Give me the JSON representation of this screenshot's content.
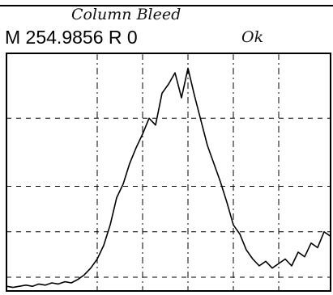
{
  "chart_data": {
    "type": "line",
    "title": "M 254.9856  R 0",
    "annotations": [
      "Column Bleed",
      "Ok"
    ],
    "x": [
      0,
      2,
      4,
      6,
      8,
      10,
      12,
      14,
      16,
      18,
      20,
      22,
      24,
      26,
      28,
      30,
      32,
      34,
      36,
      38,
      40,
      42,
      44,
      46,
      48,
      50,
      52,
      54,
      56,
      58,
      60,
      62,
      64,
      66,
      68,
      70,
      72,
      74,
      76,
      78,
      80,
      82,
      84,
      86,
      88,
      90,
      92,
      94,
      96,
      98,
      100
    ],
    "series": [
      {
        "color": "#000000",
        "values": [
          1,
          0.5,
          1,
          1.5,
          1,
          2,
          1.5,
          2.5,
          2,
          3,
          2.5,
          4,
          6,
          9,
          13,
          19,
          28,
          40,
          46,
          55,
          62,
          68,
          75,
          72,
          86,
          90,
          95,
          84,
          97,
          85,
          74,
          63,
          55,
          47,
          38,
          28,
          24,
          17,
          13,
          10,
          12,
          9,
          11,
          13,
          10,
          16,
          14,
          20,
          18,
          25,
          23
        ]
      }
    ],
    "xlim": [
      0,
      100
    ],
    "ylim": [
      0,
      100
    ],
    "xticks": [
      28,
      42,
      56,
      70,
      84
    ],
    "yticks": [
      5,
      25,
      45,
      75
    ],
    "grid": true
  }
}
